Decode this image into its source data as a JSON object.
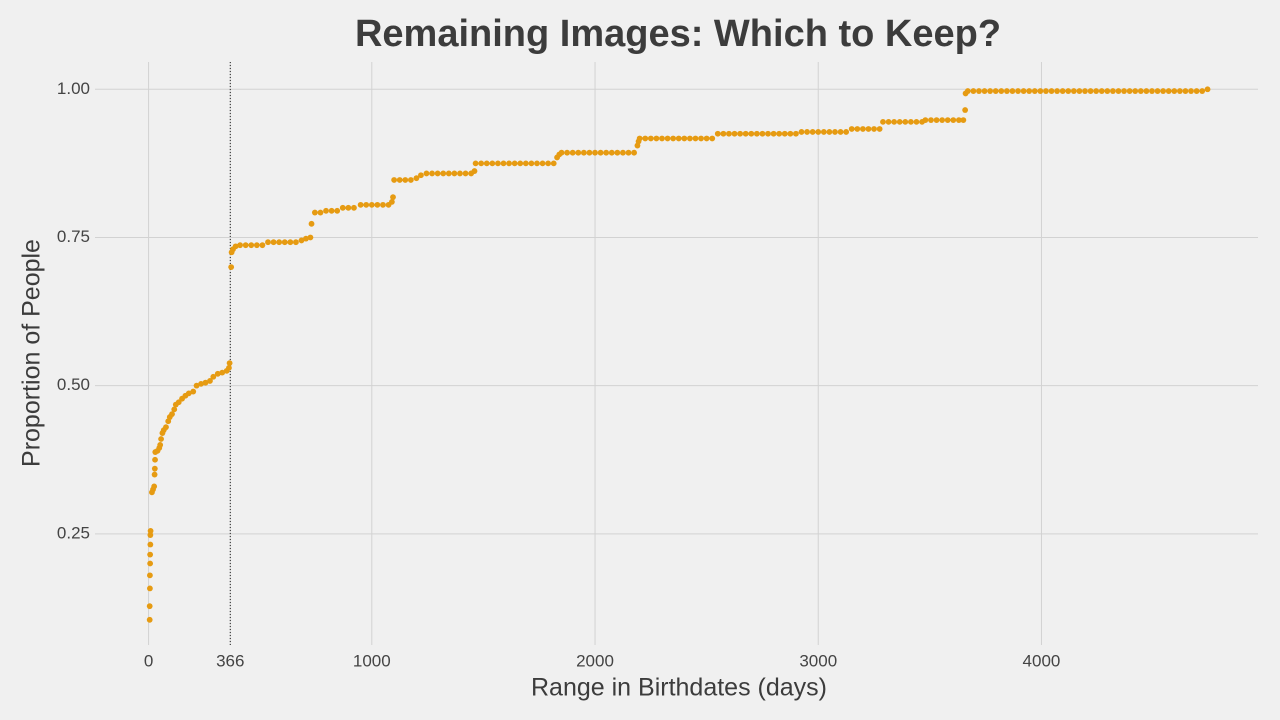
{
  "chart_data": {
    "type": "scatter",
    "title": "Remaining Images: Which to Keep?",
    "x_label": "Range in Birthdates (days)",
    "y_label": "Proportion of People",
    "color": "#e69b12",
    "grid": true,
    "vline": 366,
    "xlim": [
      -240,
      4970
    ],
    "ylim": [
      0.0625,
      1.046
    ],
    "xticks": [
      0,
      366,
      1000,
      2000,
      3000,
      4000
    ],
    "yticks": [
      0.25,
      {
        "value": 0.5,
        "label": "0.50"
      },
      0.75,
      {
        "value": 1.0,
        "label": "1.00"
      }
    ],
    "x": [
      5,
      5,
      6,
      6,
      7,
      7,
      8,
      8,
      9,
      15,
      20,
      25,
      27,
      28,
      29,
      30,
      40,
      48,
      52,
      56,
      62,
      68,
      78,
      88,
      95,
      105,
      115,
      122,
      135,
      150,
      165,
      180,
      200,
      215,
      235,
      255,
      275,
      290,
      310,
      330,
      350,
      360,
      363,
      370,
      372,
      378,
      390,
      410,
      435,
      460,
      485,
      510,
      535,
      560,
      585,
      610,
      635,
      660,
      685,
      705,
      725,
      730,
      745,
      770,
      795,
      820,
      845,
      870,
      895,
      920,
      950,
      975,
      1000,
      1025,
      1050,
      1075,
      1090,
      1095,
      1100,
      1125,
      1150,
      1175,
      1200,
      1220,
      1245,
      1270,
      1295,
      1320,
      1345,
      1370,
      1395,
      1420,
      1445,
      1460,
      1465,
      1490,
      1515,
      1540,
      1565,
      1590,
      1615,
      1640,
      1665,
      1690,
      1715,
      1740,
      1765,
      1790,
      1815,
      1830,
      1840,
      1850,
      1875,
      1900,
      1925,
      1950,
      1975,
      2000,
      2025,
      2050,
      2075,
      2100,
      2125,
      2150,
      2175,
      2190,
      2195,
      2200,
      2225,
      2250,
      2275,
      2300,
      2325,
      2350,
      2375,
      2400,
      2425,
      2450,
      2475,
      2500,
      2525,
      2550,
      2575,
      2600,
      2625,
      2650,
      2675,
      2700,
      2725,
      2750,
      2775,
      2800,
      2825,
      2850,
      2875,
      2900,
      2925,
      2950,
      2975,
      3000,
      3025,
      3050,
      3075,
      3100,
      3125,
      3150,
      3175,
      3200,
      3225,
      3250,
      3275,
      3290,
      3315,
      3340,
      3365,
      3390,
      3415,
      3440,
      3465,
      3480,
      3505,
      3530,
      3555,
      3580,
      3605,
      3630,
      3650,
      3658,
      3660,
      3670,
      3695,
      3720,
      3745,
      3770,
      3795,
      3820,
      3845,
      3870,
      3895,
      3920,
      3945,
      3970,
      3995,
      4020,
      4045,
      4070,
      4095,
      4120,
      4145,
      4170,
      4195,
      4220,
      4245,
      4270,
      4295,
      4320,
      4345,
      4370,
      4395,
      4420,
      4445,
      4470,
      4495,
      4520,
      4545,
      4570,
      4595,
      4620,
      4645,
      4670,
      4695,
      4720,
      4744
    ],
    "values": [
      0.105,
      0.128,
      0.158,
      0.18,
      0.2,
      0.215,
      0.232,
      0.248,
      0.255,
      0.32,
      0.325,
      0.33,
      0.35,
      0.36,
      0.375,
      0.388,
      0.39,
      0.395,
      0.4,
      0.41,
      0.42,
      0.425,
      0.43,
      0.44,
      0.447,
      0.452,
      0.46,
      0.468,
      0.472,
      0.478,
      0.483,
      0.487,
      0.49,
      0.5,
      0.503,
      0.505,
      0.508,
      0.515,
      0.52,
      0.522,
      0.525,
      0.53,
      0.538,
      0.7,
      0.725,
      0.73,
      0.735,
      0.737,
      0.737,
      0.737,
      0.737,
      0.737,
      0.742,
      0.742,
      0.742,
      0.742,
      0.742,
      0.742,
      0.745,
      0.748,
      0.75,
      0.773,
      0.792,
      0.792,
      0.795,
      0.795,
      0.795,
      0.8,
      0.8,
      0.8,
      0.805,
      0.805,
      0.805,
      0.805,
      0.805,
      0.805,
      0.81,
      0.818,
      0.847,
      0.847,
      0.847,
      0.847,
      0.85,
      0.855,
      0.858,
      0.858,
      0.858,
      0.858,
      0.858,
      0.858,
      0.858,
      0.858,
      0.858,
      0.862,
      0.875,
      0.875,
      0.875,
      0.875,
      0.875,
      0.875,
      0.875,
      0.875,
      0.875,
      0.875,
      0.875,
      0.875,
      0.875,
      0.875,
      0.875,
      0.885,
      0.89,
      0.893,
      0.893,
      0.893,
      0.893,
      0.893,
      0.893,
      0.893,
      0.893,
      0.893,
      0.893,
      0.893,
      0.893,
      0.893,
      0.893,
      0.905,
      0.912,
      0.917,
      0.917,
      0.917,
      0.917,
      0.917,
      0.917,
      0.917,
      0.917,
      0.917,
      0.917,
      0.917,
      0.917,
      0.917,
      0.917,
      0.925,
      0.925,
      0.925,
      0.925,
      0.925,
      0.925,
      0.925,
      0.925,
      0.925,
      0.925,
      0.925,
      0.925,
      0.925,
      0.925,
      0.925,
      0.928,
      0.928,
      0.928,
      0.928,
      0.928,
      0.928,
      0.928,
      0.928,
      0.928,
      0.933,
      0.933,
      0.933,
      0.933,
      0.933,
      0.933,
      0.945,
      0.945,
      0.945,
      0.945,
      0.945,
      0.945,
      0.945,
      0.945,
      0.948,
      0.948,
      0.948,
      0.948,
      0.948,
      0.948,
      0.948,
      0.948,
      0.965,
      0.993,
      0.997,
      0.997,
      0.997,
      0.997,
      0.997,
      0.997,
      0.997,
      0.997,
      0.997,
      0.997,
      0.997,
      0.997,
      0.997,
      0.997,
      0.997,
      0.997,
      0.997,
      0.997,
      0.997,
      0.997,
      0.997,
      0.997,
      0.997,
      0.997,
      0.997,
      0.997,
      0.997,
      0.997,
      0.997,
      0.997,
      0.997,
      0.997,
      0.997,
      0.997,
      0.997,
      0.997,
      0.997,
      0.997,
      0.997,
      0.997,
      0.997,
      0.997,
      0.997,
      1.0
    ]
  }
}
